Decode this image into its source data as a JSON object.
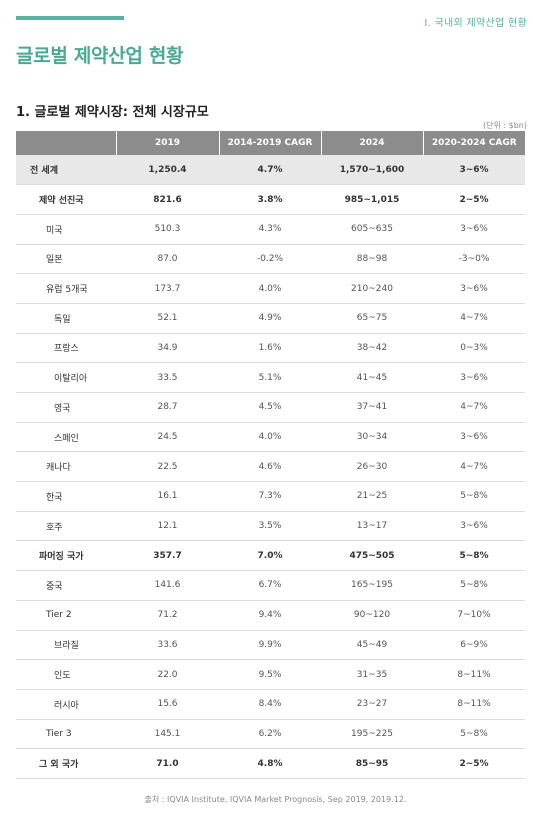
{
  "header": {
    "section_label": "Ⅰ. 국내외 제약산업 현황",
    "title": "글로벌 제약산업 현황"
  },
  "table": {
    "title": "1. 글로벌 제약시장: 전체 시장규모",
    "unit": "(단위 : $bn)",
    "columns": [
      "",
      "2019",
      "2014-2019 CAGR",
      "2024",
      "2020-2024 CAGR"
    ],
    "rows": [
      {
        "name": "전 세계",
        "v2019": "1,250.4",
        "cagr1419": "4.7%",
        "v2024": "1,570~1,600",
        "cagr2024": "3~6%"
      },
      {
        "name": "제약 선진국",
        "v2019": "821.6",
        "cagr1419": "3.8%",
        "v2024": "985~1,015",
        "cagr2024": "2~5%"
      },
      {
        "name": "미국",
        "v2019": "510.3",
        "cagr1419": "4.3%",
        "v2024": "605~635",
        "cagr2024": "3~6%"
      },
      {
        "name": "일본",
        "v2019": "87.0",
        "cagr1419": "-0.2%",
        "v2024": "88~98",
        "cagr2024": "-3~0%"
      },
      {
        "name": "유럽 5개국",
        "v2019": "173.7",
        "cagr1419": "4.0%",
        "v2024": "210~240",
        "cagr2024": "3~6%"
      },
      {
        "name": "독일",
        "v2019": "52.1",
        "cagr1419": "4.9%",
        "v2024": "65~75",
        "cagr2024": "4~7%"
      },
      {
        "name": "프랑스",
        "v2019": "34.9",
        "cagr1419": "1.6%",
        "v2024": "38~42",
        "cagr2024": "0~3%"
      },
      {
        "name": "이탈리아",
        "v2019": "33.5",
        "cagr1419": "5.1%",
        "v2024": "41~45",
        "cagr2024": "3~6%"
      },
      {
        "name": "영국",
        "v2019": "28.7",
        "cagr1419": "4.5%",
        "v2024": "37~41",
        "cagr2024": "4~7%"
      },
      {
        "name": "스페인",
        "v2019": "24.5",
        "cagr1419": "4.0%",
        "v2024": "30~34",
        "cagr2024": "3~6%"
      },
      {
        "name": "캐나다",
        "v2019": "22.5",
        "cagr1419": "4.6%",
        "v2024": "26~30",
        "cagr2024": "4~7%"
      },
      {
        "name": "한국",
        "v2019": "16.1",
        "cagr1419": "7.3%",
        "v2024": "21~25",
        "cagr2024": "5~8%"
      },
      {
        "name": "호주",
        "v2019": "12.1",
        "cagr1419": "3.5%",
        "v2024": "13~17",
        "cagr2024": "3~6%"
      },
      {
        "name": "파머징 국가",
        "v2019": "357.7",
        "cagr1419": "7.0%",
        "v2024": "475~505",
        "cagr2024": "5~8%"
      },
      {
        "name": "중국",
        "v2019": "141.6",
        "cagr1419": "6.7%",
        "v2024": "165~195",
        "cagr2024": "5~8%"
      },
      {
        "name": "Tier 2",
        "v2019": "71.2",
        "cagr1419": "9.4%",
        "v2024": "90~120",
        "cagr2024": "7~10%"
      },
      {
        "name": "브라질",
        "v2019": "33.6",
        "cagr1419": "9.9%",
        "v2024": "45~49",
        "cagr2024": "6~9%"
      },
      {
        "name": "인도",
        "v2019": "22.0",
        "cagr1419": "9.5%",
        "v2024": "31~35",
        "cagr2024": "8~11%"
      },
      {
        "name": "러시아",
        "v2019": "15.6",
        "cagr1419": "8.4%",
        "v2024": "23~27",
        "cagr2024": "8~11%"
      },
      {
        "name": "Tier 3",
        "v2019": "145.1",
        "cagr1419": "6.2%",
        "v2024": "195~225",
        "cagr2024": "5~8%"
      },
      {
        "name": "그 외 국가",
        "v2019": "71.0",
        "cagr1419": "4.8%",
        "v2024": "85~95",
        "cagr2024": "2~5%"
      }
    ]
  },
  "source": "출처 : IQVIA Institute, IQVIA Market Prognosis, Sep 2019, 2019.12."
}
